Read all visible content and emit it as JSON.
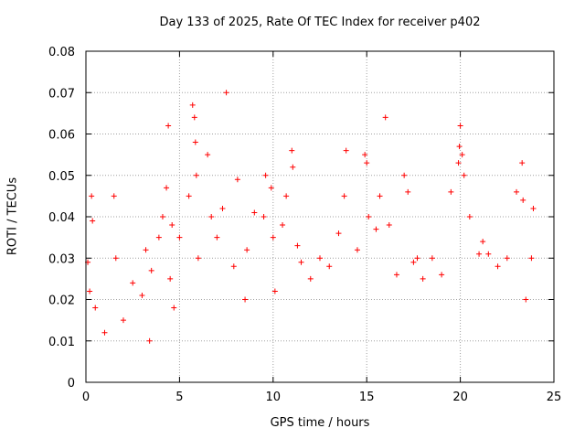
{
  "chart_data": {
    "type": "scatter",
    "title": "Day 133 of 2025, Rate Of TEC Index for receiver p402",
    "xlabel": "GPS time / hours",
    "ylabel": "ROTI / TECUs",
    "xlim": [
      0,
      25
    ],
    "ylim": [
      0,
      0.08
    ],
    "xticks": [
      0,
      5,
      10,
      15,
      20,
      25
    ],
    "xtick_labels": [
      "0",
      "5",
      "10",
      "15",
      "20",
      "25"
    ],
    "yticks": [
      0,
      0.01,
      0.02,
      0.03,
      0.04,
      0.05,
      0.06,
      0.07,
      0.08
    ],
    "ytick_labels": [
      "0",
      "0.01",
      "0.02",
      "0.03",
      "0.04",
      "0.05",
      "0.06",
      "0.07",
      "0.08"
    ],
    "grid": true,
    "marker": "+",
    "color": "#ff0000",
    "series": [
      {
        "x": [
          0.1,
          0.2,
          0.3,
          0.35,
          0.5,
          1.0,
          1.5,
          1.6,
          2.0,
          2.5,
          3.0,
          3.2,
          3.4,
          3.5,
          3.9,
          4.1,
          4.3,
          4.4,
          4.5,
          4.6,
          4.7,
          5.0,
          5.5,
          5.7,
          5.8,
          5.85,
          5.9,
          6.0,
          6.5,
          6.7,
          7.0,
          7.3,
          7.5,
          7.9,
          8.1,
          8.5,
          8.6,
          9.0,
          9.5,
          9.6,
          9.9,
          10.0,
          10.1,
          10.5,
          10.7,
          11.0,
          11.05,
          11.3,
          11.5,
          12.0,
          12.5,
          13.0,
          13.5,
          13.8,
          13.9,
          14.5,
          14.9,
          15.0,
          15.1,
          15.5,
          15.7,
          16.0,
          16.2,
          16.6,
          17.0,
          17.2,
          17.5,
          17.7,
          18.0,
          18.5,
          19.0,
          19.5,
          19.9,
          19.95,
          20.0,
          20.1,
          20.2,
          20.5,
          21.0,
          21.2,
          21.5,
          22.0,
          22.5,
          23.0,
          23.3,
          23.35,
          23.5,
          23.8,
          23.9
        ],
        "y": [
          0.029,
          0.022,
          0.045,
          0.039,
          0.018,
          0.012,
          0.045,
          0.03,
          0.015,
          0.024,
          0.021,
          0.032,
          0.01,
          0.027,
          0.035,
          0.04,
          0.047,
          0.062,
          0.025,
          0.038,
          0.018,
          0.035,
          0.045,
          0.067,
          0.064,
          0.058,
          0.05,
          0.03,
          0.055,
          0.04,
          0.035,
          0.042,
          0.07,
          0.028,
          0.049,
          0.02,
          0.032,
          0.041,
          0.04,
          0.05,
          0.047,
          0.035,
          0.022,
          0.038,
          0.045,
          0.056,
          0.052,
          0.033,
          0.029,
          0.025,
          0.03,
          0.028,
          0.036,
          0.045,
          0.056,
          0.032,
          0.055,
          0.053,
          0.04,
          0.037,
          0.045,
          0.064,
          0.038,
          0.026,
          0.05,
          0.046,
          0.029,
          0.03,
          0.025,
          0.03,
          0.026,
          0.046,
          0.053,
          0.057,
          0.062,
          0.055,
          0.05,
          0.04,
          0.031,
          0.034,
          0.031,
          0.028,
          0.03,
          0.046,
          0.053,
          0.044,
          0.02,
          0.03,
          0.042
        ]
      }
    ]
  }
}
